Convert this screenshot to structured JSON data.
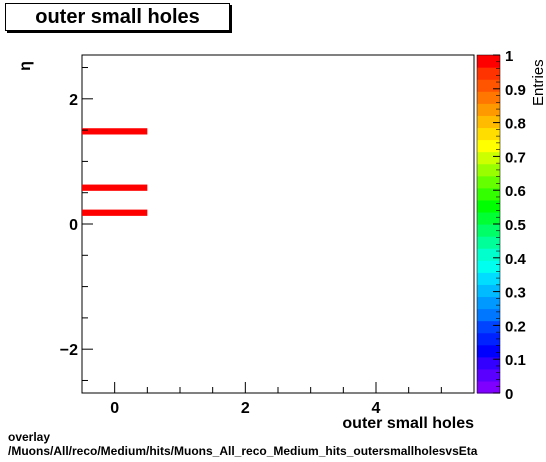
{
  "title": "outer small holes",
  "footer": {
    "line1": "overlay",
    "line2": "/Muons/All/reco/Medium/hits/Muons_All_reco_Medium_hits_outersmallholesvsEta"
  },
  "chart_data": {
    "type": "heatmap",
    "title": "outer small holes",
    "xlabel": "outer small holes",
    "ylabel": "η",
    "zlabel": "Entries",
    "xlim": [
      -0.5,
      5.5
    ],
    "ylim": [
      -2.7,
      2.7
    ],
    "zlim": [
      0,
      1
    ],
    "x_ticks": [
      0,
      2,
      4
    ],
    "y_ticks": [
      -2,
      0,
      2
    ],
    "z_ticks": [
      0,
      0.1,
      0.2,
      0.3,
      0.4,
      0.5,
      0.6,
      0.7,
      0.8,
      0.9,
      1
    ],
    "x_tick_labels": [
      "0",
      "2",
      "4"
    ],
    "y_tick_labels": [
      "−2",
      "0",
      "2"
    ],
    "z_tick_labels": [
      "0",
      "0.1",
      "0.2",
      "0.3",
      "0.4",
      "0.5",
      "0.6",
      "0.7",
      "0.8",
      "0.9",
      "1"
    ],
    "cells": [
      {
        "x0": -0.5,
        "x1": 0.5,
        "y0": 1.43,
        "y1": 1.53,
        "value": 1
      },
      {
        "x0": -0.5,
        "x1": 0.5,
        "y0": 0.53,
        "y1": 0.63,
        "value": 1
      },
      {
        "x0": -0.5,
        "x1": 0.5,
        "y0": 0.13,
        "y1": 0.23,
        "value": 1
      }
    ],
    "palette_colors": [
      "#7f00ff",
      "#5a00ff",
      "#3300ff",
      "#0000ff",
      "#0022ff",
      "#0044ff",
      "#0077ff",
      "#0099ff",
      "#00bbff",
      "#00ddff",
      "#00ffee",
      "#00ffcc",
      "#00ff99",
      "#00ff66",
      "#00ff33",
      "#00ff00",
      "#33ff00",
      "#66ff00",
      "#99ff00",
      "#ccff00",
      "#ffff00",
      "#ffdd00",
      "#ffbb00",
      "#ff9900",
      "#ff7700",
      "#ff5500",
      "#ff3300",
      "#ff0000"
    ],
    "bar_color": "#ff0000"
  }
}
